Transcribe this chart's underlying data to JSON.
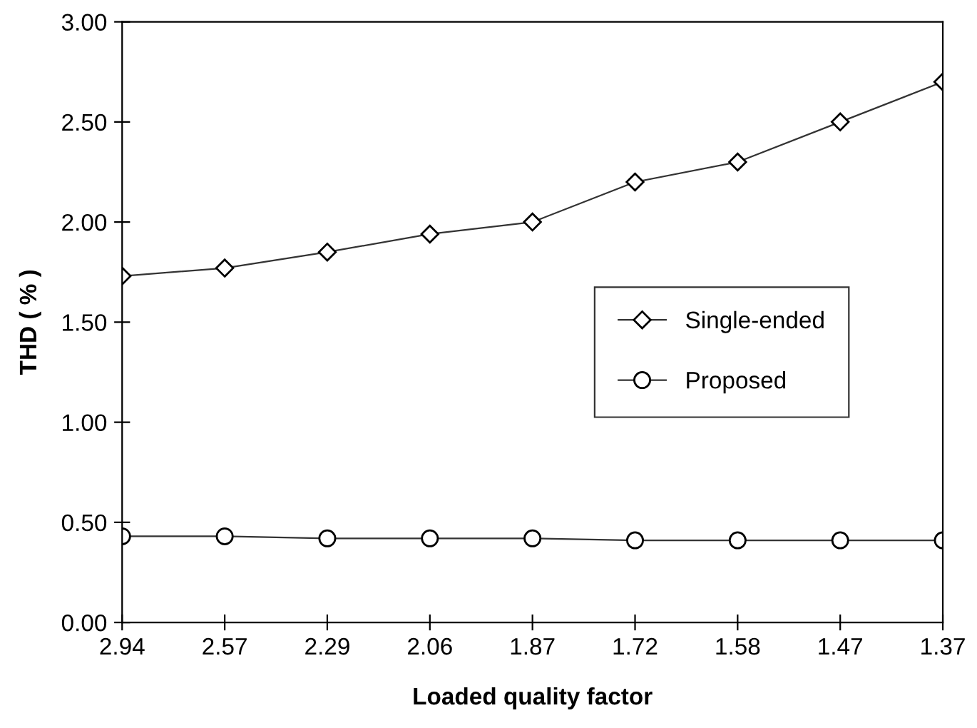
{
  "chart_data": {
    "type": "line",
    "xlabel": "Loaded quality factor",
    "ylabel": "THD ( % )",
    "categories": [
      "2.94",
      "2.57",
      "2.29",
      "2.06",
      "1.87",
      "1.72",
      "1.58",
      "1.47",
      "1.37"
    ],
    "series": [
      {
        "name": "Single-ended",
        "color": "#333333",
        "marker": "diamond",
        "values": [
          1.73,
          1.77,
          1.85,
          1.94,
          2.0,
          2.2,
          2.3,
          2.5,
          2.7
        ]
      },
      {
        "name": "Proposed",
        "color": "#333333",
        "marker": "circle",
        "values": [
          0.43,
          0.43,
          0.42,
          0.42,
          0.42,
          0.41,
          0.41,
          0.41,
          0.41
        ]
      }
    ],
    "ylim": [
      0,
      3
    ],
    "yticks": [
      {
        "value": 0,
        "label": "0.00"
      },
      {
        "value": 0.5,
        "label": "0.50"
      },
      {
        "value": 1,
        "label": "1.00"
      },
      {
        "value": 1.5,
        "label": "1.50"
      },
      {
        "value": 2,
        "label": "2.00"
      },
      {
        "value": 2.5,
        "label": "2.50"
      },
      {
        "value": 3,
        "label": "3.00"
      }
    ],
    "grid": false,
    "legend": "right",
    "line_style": "solid"
  }
}
